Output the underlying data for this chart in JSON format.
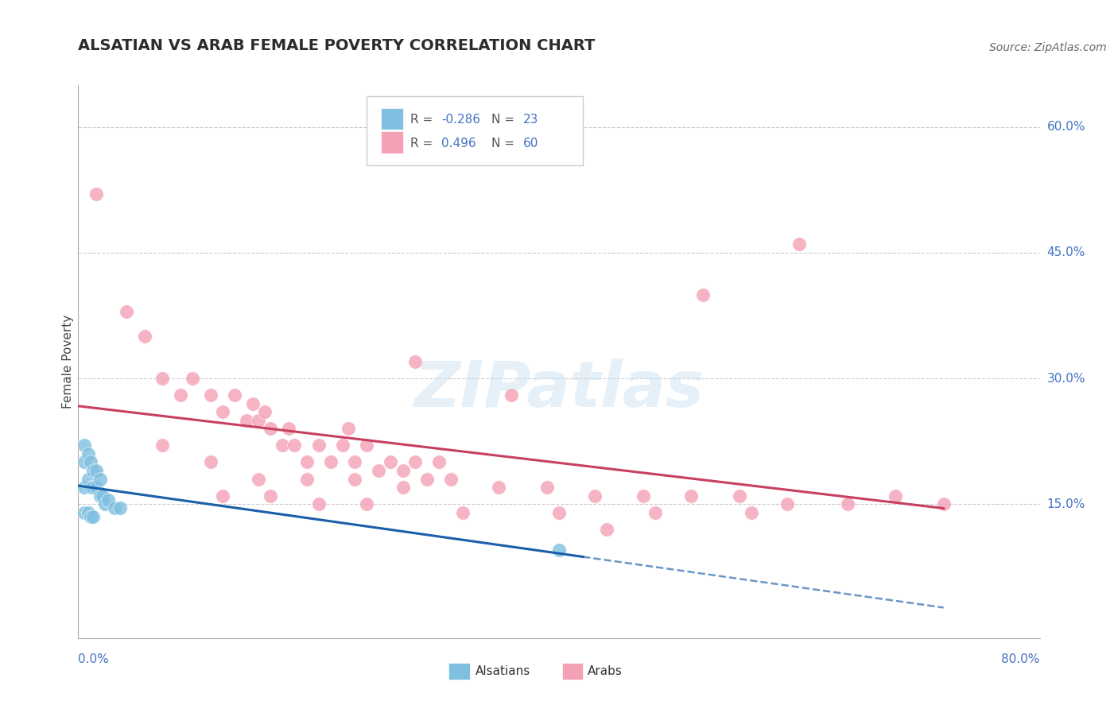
{
  "title": "ALSATIAN VS ARAB FEMALE POVERTY CORRELATION CHART",
  "source": "Source: ZipAtlas.com",
  "ylabel": "Female Poverty",
  "ytick_labels": [
    "15.0%",
    "30.0%",
    "45.0%",
    "60.0%"
  ],
  "ytick_values": [
    0.15,
    0.3,
    0.45,
    0.6
  ],
  "xmin": 0.0,
  "xmax": 0.8,
  "ymin": -0.01,
  "ymax": 0.65,
  "watermark": "ZIPatlas",
  "legend_alsatian_R": "-0.286",
  "legend_alsatian_N": "23",
  "legend_arab_R": "0.496",
  "legend_arab_N": "60",
  "color_blue": "#7fbfdf",
  "color_pink": "#f4a0b5",
  "color_blue_line": "#1a5fa8",
  "color_pink_line": "#c84060",
  "color_axis_label": "#4472c4",
  "color_title": "#2c2c2c",
  "grid_color": "#cccccc",
  "alsatian_x": [
    0.005,
    0.005,
    0.005,
    0.008,
    0.008,
    0.01,
    0.01,
    0.012,
    0.012,
    0.015,
    0.015,
    0.018,
    0.018,
    0.02,
    0.022,
    0.025,
    0.03,
    0.035,
    0.005,
    0.008,
    0.01,
    0.012,
    0.4
  ],
  "alsatian_y": [
    0.22,
    0.2,
    0.17,
    0.21,
    0.18,
    0.2,
    0.17,
    0.19,
    0.17,
    0.19,
    0.17,
    0.18,
    0.16,
    0.16,
    0.15,
    0.155,
    0.145,
    0.145,
    0.14,
    0.14,
    0.135,
    0.135,
    0.095
  ],
  "arab_x": [
    0.015,
    0.04,
    0.055,
    0.07,
    0.085,
    0.095,
    0.11,
    0.12,
    0.13,
    0.14,
    0.145,
    0.15,
    0.155,
    0.16,
    0.17,
    0.175,
    0.18,
    0.19,
    0.2,
    0.21,
    0.22,
    0.225,
    0.23,
    0.24,
    0.25,
    0.26,
    0.27,
    0.28,
    0.29,
    0.3,
    0.07,
    0.11,
    0.15,
    0.19,
    0.23,
    0.27,
    0.31,
    0.35,
    0.39,
    0.43,
    0.47,
    0.51,
    0.55,
    0.59,
    0.12,
    0.16,
    0.2,
    0.24,
    0.28,
    0.32,
    0.36,
    0.4,
    0.44,
    0.48,
    0.52,
    0.56,
    0.6,
    0.64,
    0.68,
    0.72
  ],
  "arab_y": [
    0.52,
    0.38,
    0.35,
    0.3,
    0.28,
    0.3,
    0.28,
    0.26,
    0.28,
    0.25,
    0.27,
    0.25,
    0.26,
    0.24,
    0.22,
    0.24,
    0.22,
    0.2,
    0.22,
    0.2,
    0.22,
    0.24,
    0.2,
    0.22,
    0.19,
    0.2,
    0.19,
    0.2,
    0.18,
    0.2,
    0.22,
    0.2,
    0.18,
    0.18,
    0.18,
    0.17,
    0.18,
    0.17,
    0.17,
    0.16,
    0.16,
    0.16,
    0.16,
    0.15,
    0.16,
    0.16,
    0.15,
    0.15,
    0.32,
    0.14,
    0.28,
    0.14,
    0.12,
    0.14,
    0.4,
    0.14,
    0.46,
    0.15,
    0.16,
    0.15
  ]
}
